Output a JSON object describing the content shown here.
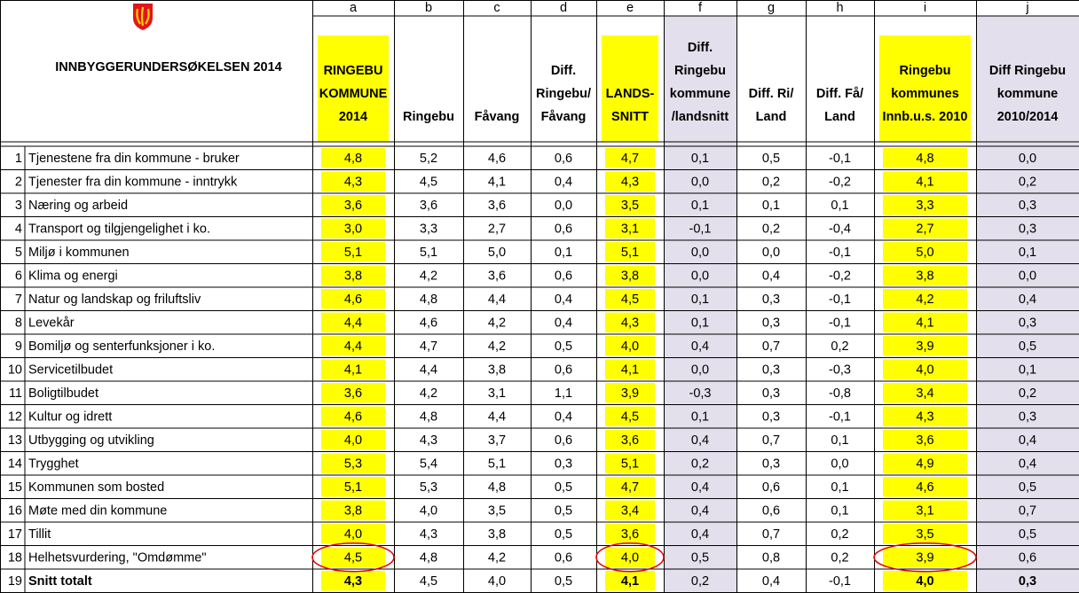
{
  "header": {
    "title": "INNBYGGERUNDERSØKELSEN  2014",
    "letters": [
      "a",
      "b",
      "c",
      "d",
      "e",
      "f",
      "g",
      "h",
      "i",
      "j"
    ],
    "columns": [
      [
        "RINGEBU",
        "KOMMUNE",
        "2014"
      ],
      [
        "Ringebu"
      ],
      [
        "Fåvang"
      ],
      [
        "Diff.",
        "Ringebu/",
        "Fåvang"
      ],
      [
        "LANDS-",
        "SNITT"
      ],
      [
        "Diff.",
        "Ringebu",
        "kommune",
        "/landsnitt"
      ],
      [
        "Diff. Ri/",
        "Land"
      ],
      [
        "Diff. Få/",
        "Land"
      ],
      [
        "Ringebu",
        "kommunes",
        "Innb.u.s. 2010"
      ],
      [
        "Diff Ringebu",
        "kommune",
        "2010/2014"
      ]
    ]
  },
  "rows": [
    {
      "no": 1,
      "label": "Tjenestene fra din kommune - bruker",
      "cells": [
        "4,8",
        "5,2",
        "4,6",
        "0,6",
        "4,7",
        "0,1",
        "0,5",
        "-0,1",
        "4,8",
        "0,0"
      ]
    },
    {
      "no": 2,
      "label": "Tjenester fra din kommune - inntrykk",
      "cells": [
        "4,3",
        "4,5",
        "4,1",
        "0,4",
        "4,3",
        "0,0",
        "0,2",
        "-0,2",
        "4,1",
        "0,2"
      ]
    },
    {
      "no": 3,
      "label": "Næring og arbeid",
      "cells": [
        "3,6",
        "3,6",
        "3,6",
        "0,0",
        "3,5",
        "0,1",
        "0,1",
        "0,1",
        "3,3",
        "0,3"
      ]
    },
    {
      "no": 4,
      "label": "Transport og tilgjengelighet i ko.",
      "cells": [
        "3,0",
        "3,3",
        "2,7",
        "0,6",
        "3,1",
        "-0,1",
        "0,2",
        "-0,4",
        "2,7",
        "0,3"
      ]
    },
    {
      "no": 5,
      "label": "Miljø i kommunen",
      "cells": [
        "5,1",
        "5,1",
        "5,0",
        "0,1",
        "5,1",
        "0,0",
        "0,0",
        "-0,1",
        "5,0",
        "0,1"
      ]
    },
    {
      "no": 6,
      "label": "Klima og energi",
      "cells": [
        "3,8",
        "4,2",
        "3,6",
        "0,6",
        "3,8",
        "0,0",
        "0,4",
        "-0,2",
        "3,8",
        "0,0"
      ]
    },
    {
      "no": 7,
      "label": "Natur og landskap og friluftsliv",
      "cells": [
        "4,6",
        "4,8",
        "4,4",
        "0,4",
        "4,5",
        "0,1",
        "0,3",
        "-0,1",
        "4,2",
        "0,4"
      ]
    },
    {
      "no": 8,
      "label": "Levekår",
      "cells": [
        "4,4",
        "4,6",
        "4,2",
        "0,4",
        "4,3",
        "0,1",
        "0,3",
        "-0,1",
        "4,1",
        "0,3"
      ]
    },
    {
      "no": 9,
      "label": "Bomiljø og senterfunksjoner i ko.",
      "cells": [
        "4,4",
        "4,7",
        "4,2",
        "0,5",
        "4,0",
        "0,4",
        "0,7",
        "0,2",
        "3,9",
        "0,5"
      ]
    },
    {
      "no": 10,
      "label": "Servicetilbudet",
      "cells": [
        "4,1",
        "4,4",
        "3,8",
        "0,6",
        "4,1",
        "0,0",
        "0,3",
        "-0,3",
        "4,0",
        "0,1"
      ]
    },
    {
      "no": 11,
      "label": "Boligtilbudet",
      "cells": [
        "3,6",
        "4,2",
        "3,1",
        "1,1",
        "3,9",
        "-0,3",
        "0,3",
        "-0,8",
        "3,4",
        "0,2"
      ]
    },
    {
      "no": 12,
      "label": "Kultur og idrett",
      "cells": [
        "4,6",
        "4,8",
        "4,4",
        "0,4",
        "4,5",
        "0,1",
        "0,3",
        "-0,1",
        "4,3",
        "0,3"
      ]
    },
    {
      "no": 13,
      "label": "Utbygging og utvikling",
      "cells": [
        "4,0",
        "4,3",
        "3,7",
        "0,6",
        "3,6",
        "0,4",
        "0,7",
        "0,1",
        "3,6",
        "0,4"
      ]
    },
    {
      "no": 14,
      "label": "Trygghet",
      "cells": [
        "5,3",
        "5,4",
        "5,1",
        "0,3",
        "5,1",
        "0,2",
        "0,3",
        "0,0",
        "4,9",
        "0,4"
      ]
    },
    {
      "no": 15,
      "label": "Kommunen som bosted",
      "cells": [
        "5,1",
        "5,3",
        "4,8",
        "0,5",
        "4,7",
        "0,4",
        "0,6",
        "0,1",
        "4,6",
        "0,5"
      ]
    },
    {
      "no": 16,
      "label": "Møte med din kommune",
      "cells": [
        "3,8",
        "4,0",
        "3,5",
        "0,5",
        "3,4",
        "0,4",
        "0,6",
        "0,1",
        "3,1",
        "0,7"
      ]
    },
    {
      "no": 17,
      "label": "Tillit",
      "cells": [
        "4,0",
        "4,3",
        "3,8",
        "0,5",
        "3,6",
        "0,4",
        "0,7",
        "0,2",
        "3,5",
        "0,5"
      ]
    },
    {
      "no": 18,
      "label": "Helhetsvurdering, \"Omdømme\"",
      "cells": [
        "4,5",
        "4,8",
        "4,2",
        "0,6",
        "4,0",
        "0,5",
        "0,8",
        "0,2",
        "3,9",
        "0,6"
      ]
    },
    {
      "no": 19,
      "label": "Snitt totalt",
      "cells": [
        "4,3",
        "4,5",
        "4,0",
        "0,5",
        "4,1",
        "0,2",
        "0,4",
        "-0,1",
        "4,0",
        "0,3"
      ]
    }
  ]
}
